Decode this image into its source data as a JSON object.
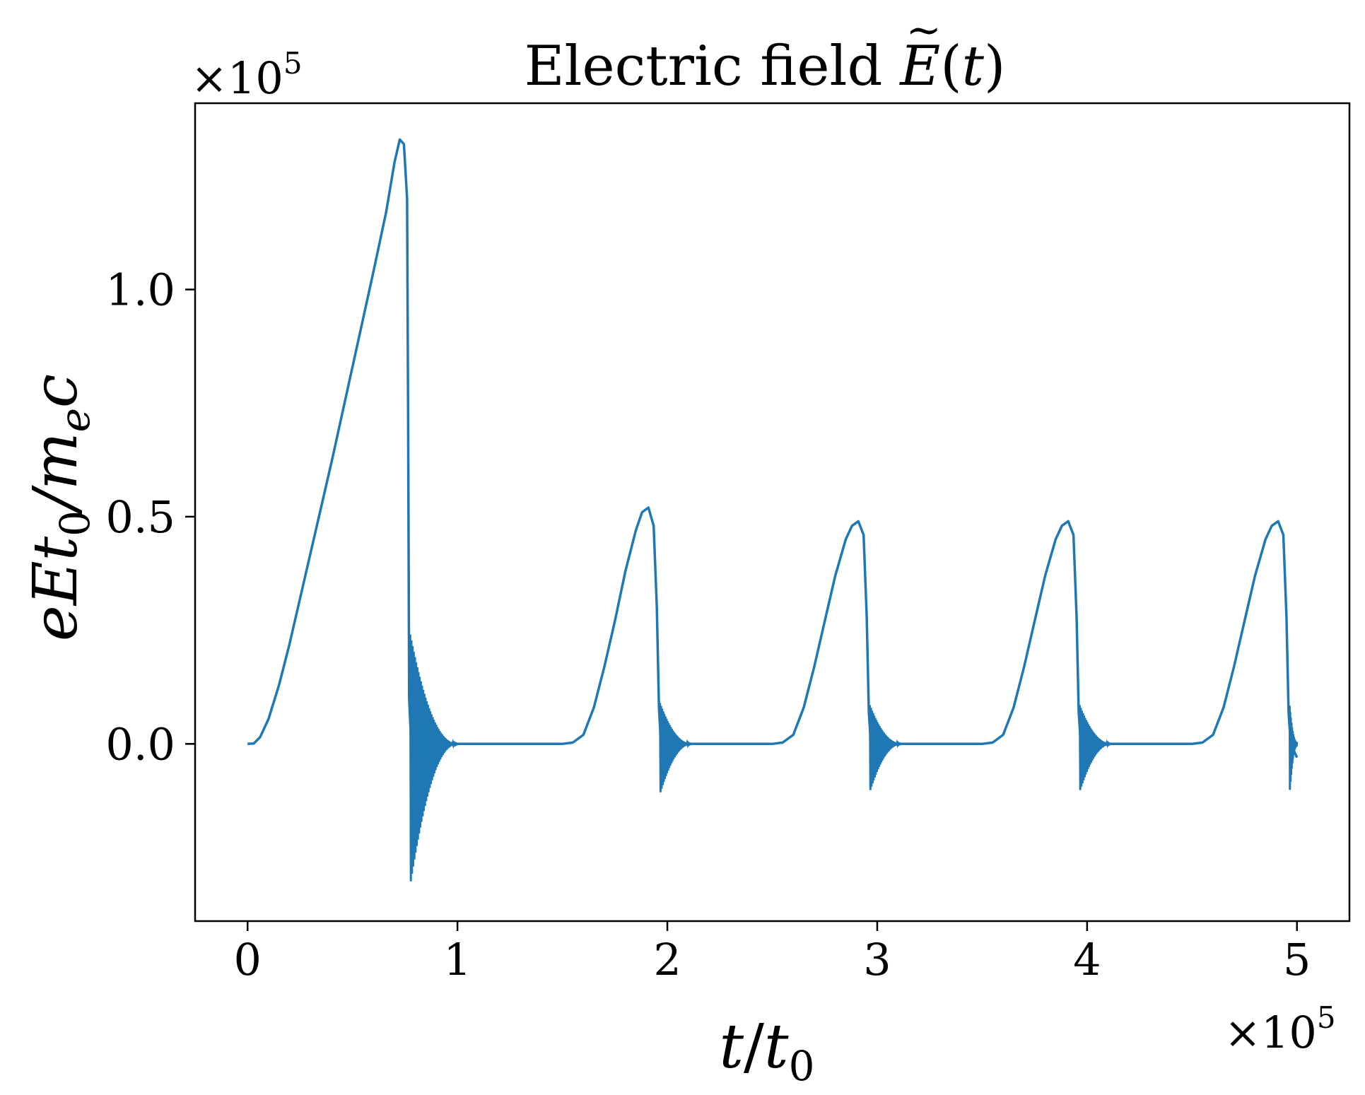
{
  "chart_data": {
    "type": "line",
    "title": "Electric field Ẽ(t)",
    "title_parts": {
      "prefix": "Electric field ",
      "symbol": "E",
      "tilde": "~",
      "arg_open": "(",
      "arg_var": "t",
      "arg_close": ")"
    },
    "xlabel": "t/t₀",
    "xlabel_parts": {
      "var": "t",
      "slash": "/",
      "base": "t",
      "sub": "0"
    },
    "ylabel": "eEt₀/mₑc",
    "ylabel_parts": {
      "p1": "eEt",
      "sub1": "0",
      "p2": "/m",
      "sub2": "e",
      "p3": "c"
    },
    "x_multiplier": {
      "base": "×10",
      "exp": "5"
    },
    "y_multiplier": {
      "base": "×10",
      "exp": "5"
    },
    "xlim": [
      -0.25,
      5.25
    ],
    "ylim": [
      -0.39,
      1.41
    ],
    "x_ticks": [
      0,
      1,
      2,
      3,
      4,
      5
    ],
    "x_tick_labels": [
      "0",
      "1",
      "2",
      "3",
      "4",
      "5"
    ],
    "y_ticks": [
      0.0,
      0.5,
      1.0
    ],
    "y_tick_labels": [
      "0.0",
      "0.5",
      "1.0"
    ],
    "line_color": "#1f77b4",
    "series": [
      {
        "points": [
          [
            0.0,
            0.0
          ],
          [
            0.03,
            0.001
          ],
          [
            0.06,
            0.015
          ],
          [
            0.1,
            0.055
          ],
          [
            0.15,
            0.13
          ],
          [
            0.2,
            0.22
          ],
          [
            0.3,
            0.42
          ],
          [
            0.4,
            0.62
          ],
          [
            0.5,
            0.83
          ],
          [
            0.6,
            1.04
          ],
          [
            0.66,
            1.17
          ],
          [
            0.7,
            1.28
          ],
          [
            0.725,
            1.33
          ],
          [
            0.745,
            1.32
          ],
          [
            0.76,
            1.2
          ],
          [
            0.765,
            0.7
          ],
          [
            0.77,
            0.1
          ],
          [
            0.78,
            0.0
          ],
          [
            0.85,
            0.0
          ],
          [
            1.0,
            0.0
          ],
          [
            1.2,
            0.0
          ],
          [
            1.5,
            0.0
          ],
          [
            1.55,
            0.003
          ],
          [
            1.6,
            0.02
          ],
          [
            1.65,
            0.08
          ],
          [
            1.7,
            0.17
          ],
          [
            1.75,
            0.27
          ],
          [
            1.8,
            0.38
          ],
          [
            1.85,
            0.47
          ],
          [
            1.88,
            0.51
          ],
          [
            1.91,
            0.52
          ],
          [
            1.935,
            0.48
          ],
          [
            1.95,
            0.3
          ],
          [
            1.96,
            0.08
          ],
          [
            1.97,
            0.0
          ],
          [
            2.1,
            0.0
          ],
          [
            2.5,
            0.0
          ],
          [
            2.55,
            0.003
          ],
          [
            2.6,
            0.02
          ],
          [
            2.65,
            0.08
          ],
          [
            2.7,
            0.17
          ],
          [
            2.75,
            0.27
          ],
          [
            2.8,
            0.37
          ],
          [
            2.85,
            0.45
          ],
          [
            2.88,
            0.48
          ],
          [
            2.91,
            0.49
          ],
          [
            2.935,
            0.46
          ],
          [
            2.95,
            0.28
          ],
          [
            2.96,
            0.07
          ],
          [
            2.97,
            0.0
          ],
          [
            3.1,
            0.0
          ],
          [
            3.5,
            0.0
          ],
          [
            3.55,
            0.003
          ],
          [
            3.6,
            0.02
          ],
          [
            3.65,
            0.08
          ],
          [
            3.7,
            0.17
          ],
          [
            3.75,
            0.27
          ],
          [
            3.8,
            0.37
          ],
          [
            3.85,
            0.45
          ],
          [
            3.88,
            0.48
          ],
          [
            3.91,
            0.49
          ],
          [
            3.935,
            0.46
          ],
          [
            3.95,
            0.28
          ],
          [
            3.96,
            0.07
          ],
          [
            3.97,
            0.0
          ],
          [
            4.1,
            0.0
          ],
          [
            4.5,
            0.0
          ],
          [
            4.55,
            0.003
          ],
          [
            4.6,
            0.02
          ],
          [
            4.65,
            0.08
          ],
          [
            4.7,
            0.17
          ],
          [
            4.75,
            0.27
          ],
          [
            4.8,
            0.37
          ],
          [
            4.85,
            0.45
          ],
          [
            4.88,
            0.48
          ],
          [
            4.91,
            0.49
          ],
          [
            4.935,
            0.46
          ],
          [
            4.95,
            0.28
          ],
          [
            4.96,
            0.07
          ],
          [
            4.97,
            0.0
          ],
          [
            5.0,
            -0.03
          ]
        ],
        "oscillations": [
          {
            "x_start": 0.775,
            "x_end": 1.0,
            "amp_top": 0.24,
            "amp_bottom": -0.31,
            "decay_end": 0.003,
            "cycles": 40
          },
          {
            "x_start": 1.965,
            "x_end": 2.12,
            "amp_top": 0.09,
            "amp_bottom": -0.11,
            "decay_end": 0.003,
            "cycles": 30
          },
          {
            "x_start": 2.965,
            "x_end": 3.12,
            "amp_top": 0.085,
            "amp_bottom": -0.105,
            "decay_end": 0.003,
            "cycles": 30
          },
          {
            "x_start": 3.965,
            "x_end": 4.12,
            "amp_top": 0.085,
            "amp_bottom": -0.105,
            "decay_end": 0.003,
            "cycles": 30
          },
          {
            "x_start": 4.965,
            "x_end": 5.0,
            "amp_top": 0.08,
            "amp_bottom": -0.105,
            "decay_end": 0.05,
            "cycles": 12
          }
        ]
      }
    ],
    "grid": false,
    "legend": "none"
  }
}
